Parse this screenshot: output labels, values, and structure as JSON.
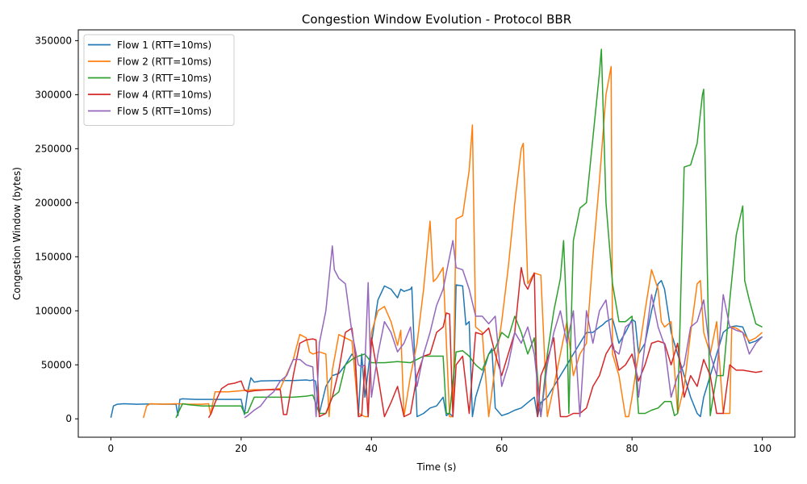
{
  "chart_data": {
    "type": "line",
    "title": "Congestion Window Evolution - Protocol BBR",
    "xlabel": "Time (s)",
    "ylabel": "Congestion Window (bytes)",
    "xlim": [
      -5,
      105
    ],
    "ylim": [
      -17000,
      360000
    ],
    "xticks": [
      0,
      20,
      40,
      60,
      80,
      100
    ],
    "yticks": [
      0,
      50000,
      100000,
      150000,
      200000,
      250000,
      300000,
      350000
    ],
    "grid": false,
    "legend_position": "upper-left",
    "series": [
      {
        "name": "Flow 1 (RTT=10ms)",
        "color": "#1f77b4",
        "x": [
          0.0,
          0.4,
          1.0,
          2.0,
          4.0,
          6.0,
          8.0,
          10.0,
          10.3,
          10.6,
          11.0,
          13.0,
          15.0,
          17.0,
          19.0,
          20.0,
          20.5,
          21.0,
          21.5,
          22.0,
          23.0,
          26.0,
          28.0,
          30.0,
          30.6,
          31.0,
          31.4,
          32.0,
          33.0,
          34.0,
          35.0,
          36.0,
          37.0,
          37.5,
          38.0,
          38.5,
          39.0,
          40.0,
          41.0,
          42.0,
          43.0,
          44.0,
          44.5,
          45.0,
          46.0,
          46.2,
          47.0,
          48.0,
          49.0,
          50.0,
          51.0,
          51.5,
          52.0,
          52.5,
          53.0,
          54.0,
          54.5,
          55.0,
          55.5,
          56.0,
          57.0,
          58.0,
          58.5,
          59.0,
          60.0,
          61.0,
          62.0,
          63.0,
          64.0,
          65.0,
          65.5,
          66.0,
          67.0,
          68.0,
          69.0,
          70.0,
          71.0,
          72.0,
          73.0,
          74.0,
          75.0,
          75.5,
          76.0,
          77.0,
          78.0,
          79.0,
          80.0,
          80.5,
          81.0,
          82.0,
          83.0,
          84.0,
          84.5,
          85.0,
          86.0,
          87.0,
          88.0,
          89.0,
          90.0,
          90.5,
          91.0,
          92.0,
          93.0,
          94.0,
          95.0,
          96.0,
          97.0,
          98.0,
          99.0,
          100.0
        ],
        "y": [
          1000,
          12000,
          13500,
          14000,
          13500,
          13800,
          13600,
          13500,
          3000,
          18000,
          18500,
          18000,
          18000,
          18000,
          18000,
          18000,
          4000,
          25000,
          38000,
          34000,
          35000,
          35500,
          35500,
          36000,
          35500,
          36000,
          35000,
          5000,
          30000,
          40000,
          42000,
          50000,
          60000,
          55000,
          3000,
          60000,
          20000,
          70000,
          110000,
          123000,
          120000,
          112000,
          120000,
          118000,
          120000,
          122000,
          2000,
          5000,
          10000,
          12000,
          20000,
          3000,
          5000,
          2000,
          124000,
          123000,
          87000,
          90000,
          2000,
          20000,
          40000,
          60000,
          65000,
          10000,
          3000,
          5000,
          8000,
          10000,
          15000,
          20000,
          2000,
          15000,
          20000,
          30000,
          40000,
          50000,
          60000,
          70000,
          80000,
          80000,
          85000,
          87000,
          90000,
          93000,
          70000,
          80000,
          92000,
          90000,
          60000,
          70000,
          100000,
          125000,
          128000,
          120000,
          80000,
          60000,
          40000,
          20000,
          5000,
          2000,
          20000,
          40000,
          60000,
          80000,
          85000,
          86000,
          85000,
          70000,
          72000,
          76000
        ]
      },
      {
        "name": "Flow 2 (RTT=10ms)",
        "color": "#ff7f0e",
        "x": [
          5.0,
          5.5,
          6.0,
          8.0,
          10.0,
          12.0,
          14.0,
          15.0,
          15.3,
          16.0,
          18.0,
          20.0,
          22.0,
          24.0,
          26.0,
          28.0,
          29.0,
          30.0,
          30.5,
          31.0,
          32.0,
          33.0,
          33.5,
          34.0,
          35.0,
          36.0,
          37.0,
          38.0,
          39.0,
          39.5,
          40.0,
          41.0,
          42.0,
          43.0,
          44.0,
          44.5,
          45.0,
          46.0,
          47.0,
          48.0,
          49.0,
          49.5,
          50.0,
          51.0,
          52.0,
          52.5,
          53.0,
          54.0,
          55.0,
          55.5,
          56.0,
          57.0,
          58.0,
          58.5,
          59.0,
          60.0,
          61.0,
          62.0,
          63.0,
          63.3,
          64.0,
          65.0,
          66.0,
          67.0,
          68.0,
          69.0,
          70.0,
          71.0,
          72.0,
          73.0,
          74.0,
          75.0,
          76.0,
          76.8,
          77.0,
          78.0,
          79.0,
          79.5,
          80.0,
          81.0,
          82.0,
          83.0,
          84.0,
          84.5,
          85.0,
          86.0,
          87.0,
          88.0,
          89.0,
          90.0,
          90.5,
          91.0,
          92.0,
          93.0,
          94.0,
          95.0,
          95.3,
          96.0,
          97.0,
          98.0,
          99.0,
          100.0
        ],
        "y": [
          1000,
          12000,
          14000,
          13500,
          14000,
          13500,
          13500,
          14000,
          4000,
          25000,
          25000,
          26000,
          27000,
          27000,
          28000,
          55000,
          78000,
          75000,
          62000,
          60000,
          62000,
          60000,
          2000,
          45000,
          78000,
          75000,
          72000,
          5000,
          2000,
          2000,
          80000,
          100000,
          104000,
          90000,
          68000,
          82000,
          2000,
          40000,
          70000,
          120000,
          183000,
          127000,
          130000,
          140000,
          2000,
          2000,
          185000,
          188000,
          230000,
          272000,
          85000,
          80000,
          2000,
          25000,
          50000,
          90000,
          140000,
          200000,
          250000,
          255000,
          125000,
          135000,
          133000,
          2000,
          30000,
          60000,
          90000,
          40000,
          60000,
          70000,
          150000,
          220000,
          300000,
          326000,
          60000,
          40000,
          2000,
          2000,
          20000,
          60000,
          100000,
          138000,
          120000,
          90000,
          85000,
          90000,
          5000,
          30000,
          80000,
          125000,
          128000,
          80000,
          60000,
          90000,
          5000,
          5000,
          85000,
          84000,
          80000,
          72000,
          75000,
          80000
        ]
      },
      {
        "name": "Flow 3 (RTT=10ms)",
        "color": "#2ca02c",
        "x": [
          10.0,
          10.3,
          11.0,
          12.0,
          14.0,
          16.0,
          18.0,
          20.0,
          20.5,
          21.0,
          22.0,
          24.0,
          26.0,
          28.0,
          30.0,
          31.0,
          32.0,
          33.0,
          34.0,
          35.0,
          36.0,
          37.0,
          38.0,
          39.0,
          40.0,
          41.0,
          42.0,
          44.0,
          46.0,
          48.0,
          50.0,
          51.0,
          51.5,
          52.0,
          53.0,
          54.0,
          55.0,
          56.0,
          57.0,
          58.0,
          59.0,
          60.0,
          61.0,
          62.0,
          63.0,
          64.0,
          65.0,
          66.0,
          67.0,
          68.0,
          69.0,
          69.5,
          70.0,
          70.3,
          71.0,
          72.0,
          73.0,
          74.0,
          75.0,
          75.3,
          76.0,
          77.0,
          78.0,
          79.0,
          80.0,
          81.0,
          82.0,
          83.0,
          84.0,
          85.0,
          86.0,
          86.5,
          87.0,
          88.0,
          89.0,
          90.0,
          90.8,
          91.0,
          92.0,
          93.0,
          94.0,
          95.0,
          96.0,
          97.0,
          97.3,
          98.0,
          99.0,
          100.0
        ],
        "y": [
          1000,
          5000,
          14000,
          13000,
          12000,
          12000,
          12000,
          12000,
          5000,
          6000,
          20000,
          20000,
          20000,
          20000,
          21000,
          22000,
          5000,
          5000,
          20000,
          25000,
          50000,
          55000,
          58000,
          60000,
          52000,
          52000,
          52000,
          53000,
          52000,
          58000,
          58000,
          58000,
          5000,
          5000,
          62000,
          63000,
          58000,
          50000,
          45000,
          60000,
          65000,
          80000,
          75000,
          95000,
          80000,
          60000,
          75000,
          2000,
          60000,
          100000,
          130000,
          165000,
          90000,
          5000,
          165000,
          195000,
          200000,
          260000,
          320000,
          342000,
          200000,
          125000,
          90000,
          90000,
          95000,
          5000,
          5000,
          8000,
          10000,
          16000,
          16000,
          3000,
          5000,
          233000,
          235000,
          255000,
          300000,
          305000,
          3000,
          40000,
          40000,
          110000,
          170000,
          197000,
          128000,
          110000,
          88000,
          85000
        ]
      },
      {
        "name": "Flow 4 (RTT=10ms)",
        "color": "#d62728",
        "x": [
          15.0,
          15.4,
          16.0,
          17.0,
          18.0,
          19.0,
          20.0,
          20.5,
          21.0,
          22.0,
          24.0,
          26.0,
          26.5,
          27.0,
          28.0,
          29.0,
          30.0,
          31.0,
          31.5,
          32.0,
          33.0,
          34.0,
          35.0,
          36.0,
          37.0,
          37.5,
          38.0,
          38.5,
          39.0,
          39.5,
          40.0,
          41.0,
          42.0,
          43.0,
          44.0,
          45.0,
          46.0,
          47.0,
          48.0,
          49.0,
          50.0,
          51.0,
          51.5,
          52.0,
          52.5,
          53.0,
          54.0,
          55.0,
          56.0,
          57.0,
          58.0,
          59.0,
          60.0,
          61.0,
          62.0,
          63.0,
          63.5,
          64.0,
          65.0,
          65.5,
          66.0,
          67.0,
          68.0,
          69.0,
          70.0,
          71.0,
          72.0,
          73.0,
          74.0,
          75.0,
          76.0,
          77.0,
          78.0,
          79.0,
          80.0,
          81.0,
          82.0,
          83.0,
          84.0,
          85.0,
          86.0,
          87.0,
          88.0,
          89.0,
          90.0,
          91.0,
          92.0,
          93.0,
          94.0,
          95.0,
          96.0,
          97.0,
          98.0,
          99.0,
          100.0
        ],
        "y": [
          1000,
          5000,
          15000,
          28000,
          32000,
          33000,
          35000,
          27000,
          25000,
          26000,
          27000,
          27000,
          4000,
          4000,
          40000,
          70000,
          73000,
          74000,
          73000,
          2000,
          5000,
          20000,
          45000,
          80000,
          84000,
          60000,
          2000,
          3000,
          50000,
          2000,
          75000,
          40000,
          2000,
          15000,
          30000,
          2000,
          5000,
          40000,
          58000,
          60000,
          80000,
          85000,
          98000,
          97000,
          2000,
          50000,
          58000,
          5000,
          80000,
          78000,
          84000,
          60000,
          40000,
          60000,
          80000,
          140000,
          125000,
          120000,
          135000,
          2000,
          40000,
          55000,
          75000,
          2000,
          2000,
          5000,
          5000,
          10000,
          30000,
          40000,
          60000,
          70000,
          45000,
          50000,
          60000,
          35000,
          50000,
          70000,
          72000,
          70000,
          50000,
          70000,
          20000,
          40000,
          30000,
          55000,
          40000,
          5000,
          5000,
          50000,
          45000,
          45000,
          44000,
          43000,
          44000
        ]
      },
      {
        "name": "Flow 5 (RTT=10ms)",
        "color": "#9467bd",
        "x": [
          20.5,
          21.0,
          22.0,
          23.0,
          24.0,
          25.0,
          26.0,
          27.0,
          28.0,
          29.0,
          30.0,
          31.0,
          31.5,
          32.0,
          33.0,
          33.5,
          34.0,
          34.3,
          35.0,
          36.0,
          37.0,
          38.0,
          38.5,
          39.0,
          39.5,
          40.0,
          41.0,
          42.0,
          43.0,
          44.0,
          45.0,
          46.0,
          47.0,
          48.0,
          49.0,
          50.0,
          51.0,
          52.0,
          52.5,
          53.0,
          54.0,
          55.0,
          56.0,
          57.0,
          58.0,
          59.0,
          60.0,
          61.0,
          62.0,
          63.0,
          64.0,
          65.0,
          66.0,
          67.0,
          68.0,
          69.0,
          70.0,
          71.0,
          72.0,
          73.0,
          74.0,
          75.0,
          76.0,
          77.0,
          78.0,
          79.0,
          80.0,
          81.0,
          82.0,
          83.0,
          84.0,
          85.0,
          86.0,
          87.0,
          88.0,
          89.0,
          90.0,
          91.0,
          92.0,
          93.0,
          94.0,
          95.0,
          96.0,
          97.0,
          98.0,
          99.0,
          100.0
        ],
        "y": [
          1000,
          3000,
          8000,
          12000,
          20000,
          25000,
          35000,
          40000,
          55000,
          55000,
          50000,
          48000,
          2000,
          70000,
          100000,
          130000,
          160000,
          138000,
          130000,
          125000,
          80000,
          50000,
          48000,
          50000,
          126000,
          20000,
          60000,
          90000,
          80000,
          62000,
          70000,
          85000,
          30000,
          60000,
          80000,
          105000,
          120000,
          150000,
          165000,
          140000,
          138000,
          120000,
          95000,
          95000,
          88000,
          95000,
          30000,
          50000,
          80000,
          70000,
          85000,
          60000,
          2000,
          50000,
          80000,
          100000,
          70000,
          100000,
          2000,
          100000,
          70000,
          100000,
          110000,
          65000,
          60000,
          85000,
          90000,
          20000,
          70000,
          115000,
          85000,
          68000,
          20000,
          40000,
          50000,
          85000,
          90000,
          110000,
          60000,
          40000,
          115000,
          85000,
          82000,
          80000,
          60000,
          70000,
          76000
        ]
      }
    ]
  }
}
